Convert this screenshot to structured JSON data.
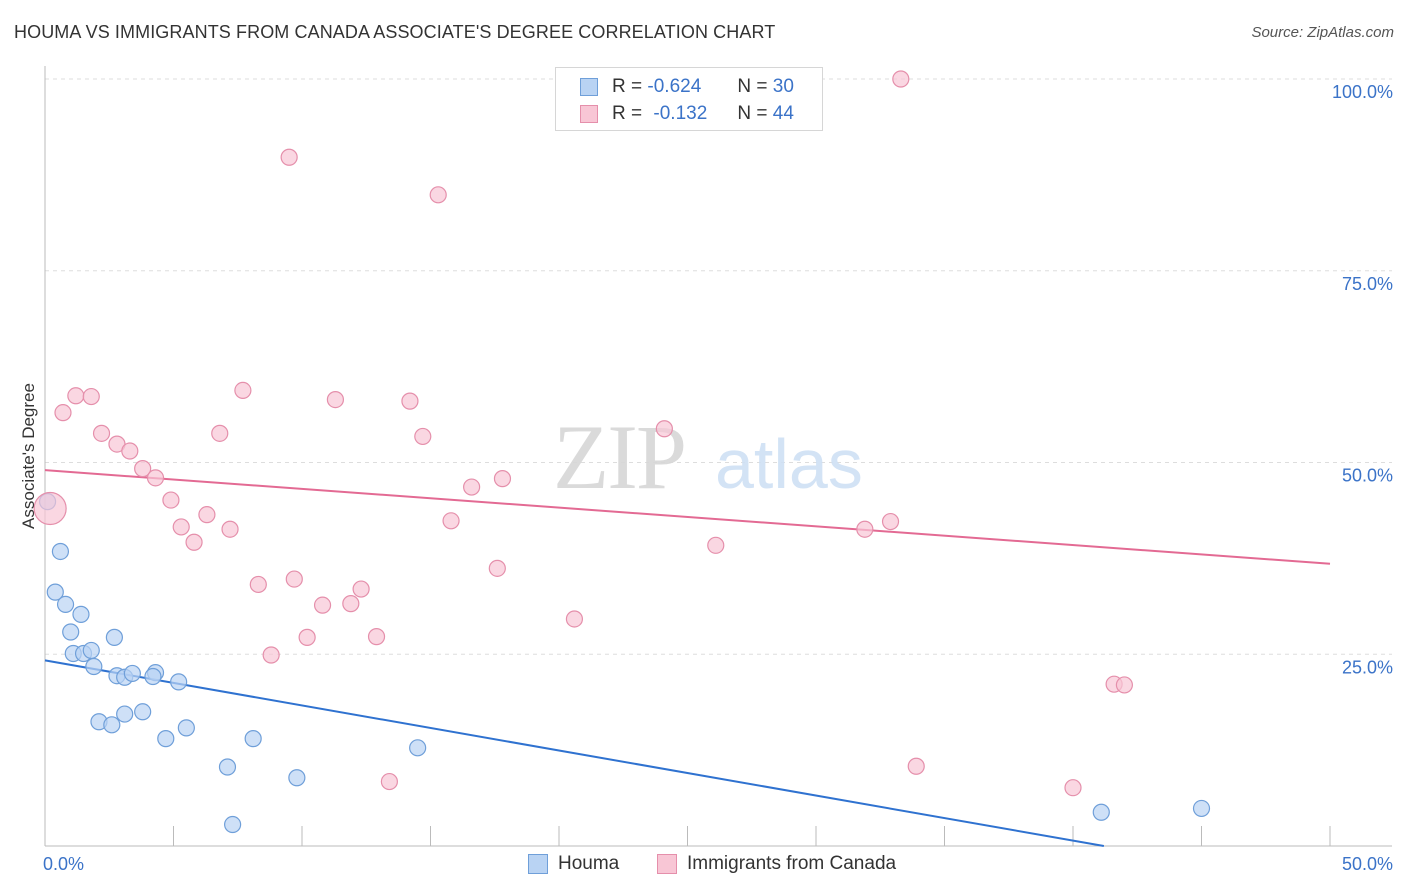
{
  "title": "HOUMA VS IMMIGRANTS FROM CANADA ASSOCIATE'S DEGREE CORRELATION CHART",
  "source": "Source: ZipAtlas.com",
  "watermark": {
    "zip": "ZIP",
    "atlas": "atlas"
  },
  "legend_stats": [
    {
      "r_label": "R =",
      "r_value": "-0.624",
      "n_label": "N =",
      "n_value": "30"
    },
    {
      "r_label": "R =",
      "r_value": "-0.132",
      "n_label": "N =",
      "n_value": "44"
    }
  ],
  "bottom_legend": [
    "Houma",
    "Immigrants from Canada"
  ],
  "colors": {
    "houma_fill": "#b9d3f3",
    "houma_stroke": "#6f9fd9",
    "houma_line": "#2f72d0",
    "canada_fill": "#f8c6d5",
    "canada_stroke": "#e58fab",
    "canada_line": "#e36a93",
    "tick_label": "#3b73c8",
    "grid": "#dddddd"
  },
  "chart_data": {
    "type": "scatter",
    "title": "HOUMA VS IMMIGRANTS FROM CANADA ASSOCIATE'S DEGREE CORRELATION CHART",
    "xlabel": "",
    "ylabel": "Associate's Degree",
    "xlim": [
      0,
      50
    ],
    "ylim": [
      0,
      100
    ],
    "x_tick_labels": [
      "0.0%",
      "50.0%"
    ],
    "y_ticks": [
      25,
      50,
      75,
      100
    ],
    "y_tick_labels": [
      "25.0%",
      "50.0%",
      "75.0%",
      "100.0%"
    ],
    "grid": true,
    "series": [
      {
        "name": "Houma",
        "points": [
          [
            0.1,
            44.9
          ],
          [
            0.6,
            38.4
          ],
          [
            0.4,
            33.1
          ],
          [
            0.8,
            31.5
          ],
          [
            1.4,
            30.2
          ],
          [
            1.0,
            27.9
          ],
          [
            1.1,
            25.1
          ],
          [
            1.5,
            25.1
          ],
          [
            1.8,
            25.5
          ],
          [
            1.9,
            23.4
          ],
          [
            2.7,
            27.2
          ],
          [
            2.8,
            22.2
          ],
          [
            3.1,
            22.0
          ],
          [
            3.4,
            22.5
          ],
          [
            4.3,
            22.6
          ],
          [
            4.2,
            22.1
          ],
          [
            5.2,
            21.4
          ],
          [
            2.1,
            16.2
          ],
          [
            2.6,
            15.8
          ],
          [
            3.1,
            17.2
          ],
          [
            3.8,
            17.5
          ],
          [
            4.7,
            14.0
          ],
          [
            5.5,
            15.4
          ],
          [
            7.1,
            10.3
          ],
          [
            8.1,
            14.0
          ],
          [
            9.8,
            8.9
          ],
          [
            14.5,
            12.8
          ],
          [
            7.3,
            2.8
          ],
          [
            41.1,
            4.4
          ],
          [
            45.0,
            4.9
          ]
        ],
        "trend": {
          "x": [
            0,
            41.2
          ],
          "y": [
            24.2,
            0
          ]
        }
      },
      {
        "name": "Immigrants from Canada",
        "points": [
          [
            0.2,
            44.0
          ],
          [
            0.7,
            56.5
          ],
          [
            1.2,
            58.7
          ],
          [
            1.8,
            58.6
          ],
          [
            2.2,
            53.8
          ],
          [
            2.8,
            52.4
          ],
          [
            3.3,
            51.5
          ],
          [
            3.8,
            49.2
          ],
          [
            4.3,
            48.0
          ],
          [
            4.9,
            45.1
          ],
          [
            5.3,
            41.6
          ],
          [
            5.8,
            39.6
          ],
          [
            6.3,
            43.2
          ],
          [
            6.8,
            53.8
          ],
          [
            7.2,
            41.3
          ],
          [
            7.7,
            59.4
          ],
          [
            8.3,
            34.1
          ],
          [
            8.8,
            24.9
          ],
          [
            9.5,
            89.8
          ],
          [
            9.7,
            34.8
          ],
          [
            10.2,
            27.2
          ],
          [
            10.8,
            31.4
          ],
          [
            11.3,
            58.2
          ],
          [
            11.9,
            31.6
          ],
          [
            12.3,
            33.5
          ],
          [
            12.9,
            27.3
          ],
          [
            13.4,
            8.4
          ],
          [
            14.2,
            58.0
          ],
          [
            14.7,
            53.4
          ],
          [
            15.3,
            84.9
          ],
          [
            15.8,
            42.4
          ],
          [
            16.6,
            46.8
          ],
          [
            17.6,
            36.2
          ],
          [
            17.8,
            47.9
          ],
          [
            20.6,
            29.6
          ],
          [
            24.1,
            54.4
          ],
          [
            26.1,
            39.2
          ],
          [
            31.9,
            41.3
          ],
          [
            32.9,
            42.3
          ],
          [
            33.3,
            100.0
          ],
          [
            33.9,
            10.4
          ],
          [
            40.0,
            7.6
          ],
          [
            41.6,
            21.1
          ],
          [
            42.0,
            21.0
          ]
        ],
        "trend": {
          "x": [
            0,
            50
          ],
          "y": [
            49.0,
            36.8
          ]
        }
      }
    ]
  }
}
